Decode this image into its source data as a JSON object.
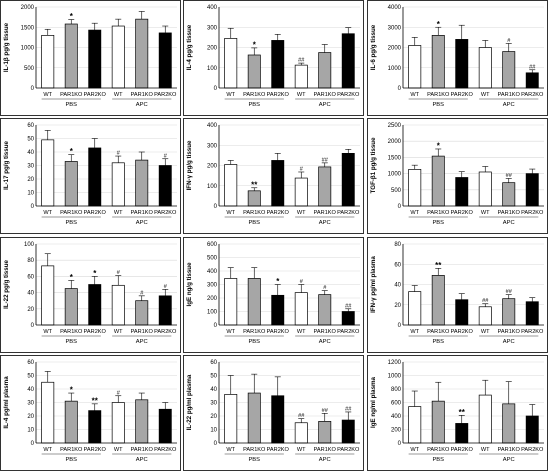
{
  "style": {
    "wt_color": "#ffffff",
    "par1_color": "#a6a6a6",
    "par2_color": "#000000",
    "edge": "#000000",
    "grid": "#d9d9d9"
  },
  "chart_data": [
    {
      "type": "bar",
      "ylabel": "IL-1β pg/g tissue",
      "ylim": [
        0,
        2000
      ],
      "yticks": [
        0,
        500,
        1000,
        1500,
        2000
      ],
      "categories": [
        "WT",
        "PAR1KO",
        "PAR2KO",
        "WT",
        "PAR1KO",
        "PAR2KO"
      ],
      "groups": [
        "PBS",
        "APC"
      ],
      "values": [
        1300,
        1580,
        1430,
        1530,
        1700,
        1360
      ],
      "errors": [
        150,
        110,
        170,
        170,
        190,
        170
      ],
      "annotations": [
        "",
        "*",
        "",
        "",
        "",
        ""
      ]
    },
    {
      "type": "bar",
      "ylabel": "IL-4 pg/g tissue",
      "ylim": [
        0,
        400
      ],
      "yticks": [
        0,
        100,
        200,
        300,
        400
      ],
      "categories": [
        "WT",
        "PAR1KO",
        "PAR2KO",
        "WT",
        "PAR1KO",
        "PAR2KO"
      ],
      "groups": [
        "PBS",
        "APC"
      ],
      "values": [
        245,
        163,
        235,
        113,
        175,
        268
      ],
      "errors": [
        50,
        35,
        30,
        10,
        40,
        30
      ],
      "annotations": [
        "",
        "*",
        "",
        "##",
        "",
        ""
      ]
    },
    {
      "type": "bar",
      "ylabel": "IL-6 pg/g tissue",
      "ylim": [
        0,
        4000
      ],
      "yticks": [
        0,
        1000,
        2000,
        3000,
        4000
      ],
      "categories": [
        "WT",
        "PAR1KO",
        "PAR2KO",
        "WT",
        "PAR1KO",
        "PAR2KO"
      ],
      "groups": [
        "PBS",
        "APC"
      ],
      "values": [
        2100,
        2600,
        2400,
        2000,
        1800,
        750
      ],
      "errors": [
        400,
        400,
        700,
        350,
        400,
        150
      ],
      "annotations": [
        "",
        "*",
        "",
        "",
        "#",
        "##"
      ]
    },
    {
      "type": "bar",
      "ylabel": "IL-17 pg/g tissue",
      "ylim": [
        0,
        60
      ],
      "yticks": [
        0,
        10,
        20,
        30,
        40,
        50,
        60
      ],
      "categories": [
        "WT",
        "PAR1KO",
        "PAR2KO",
        "WT",
        "PAR1KO",
        "PAR2KO"
      ],
      "groups": [
        "PBS",
        "APC"
      ],
      "values": [
        49,
        33,
        43,
        32,
        34,
        30
      ],
      "errors": [
        7,
        5,
        7,
        5,
        6,
        5
      ],
      "annotations": [
        "",
        "*",
        "",
        "#",
        "",
        "#"
      ]
    },
    {
      "type": "bar",
      "ylabel": "IFN-γ pg/g tissue",
      "ylim": [
        0,
        400
      ],
      "yticks": [
        0,
        100,
        200,
        300,
        400
      ],
      "categories": [
        "WT",
        "PAR1KO",
        "PAR2KO",
        "WT",
        "PAR1KO",
        "PAR2KO"
      ],
      "groups": [
        "PBS",
        "APC"
      ],
      "values": [
        205,
        75,
        225,
        138,
        193,
        260
      ],
      "errors": [
        20,
        15,
        35,
        30,
        20,
        20
      ],
      "annotations": [
        "",
        "**",
        "",
        "#",
        "##",
        ""
      ]
    },
    {
      "type": "bar",
      "ylabel": "TGF-β1 pg/g tissue",
      "ylim": [
        0,
        2500
      ],
      "yticks": [
        0,
        500,
        1000,
        1500,
        2000,
        2500
      ],
      "categories": [
        "WT",
        "PAR1KO",
        "PAR2KO",
        "WT",
        "PAR1KO",
        "PAR2KO"
      ],
      "groups": [
        "PBS",
        "APC"
      ],
      "values": [
        1130,
        1540,
        880,
        1050,
        720,
        1000
      ],
      "errors": [
        130,
        220,
        180,
        170,
        130,
        140
      ],
      "annotations": [
        "",
        "*",
        "",
        "",
        "##",
        ""
      ]
    },
    {
      "type": "bar",
      "ylabel": "IL-22 pg/g tissue",
      "ylim": [
        0,
        100
      ],
      "yticks": [
        0,
        20,
        40,
        60,
        80,
        100
      ],
      "categories": [
        "WT",
        "PAR1KO",
        "PAR2KO",
        "WT",
        "PAR1KO",
        "PAR2KO"
      ],
      "groups": [
        "PBS",
        "APC"
      ],
      "values": [
        73,
        45,
        50,
        49,
        30,
        36
      ],
      "errors": [
        15,
        10,
        10,
        12,
        6,
        8
      ],
      "annotations": [
        "",
        "*",
        "*",
        "#",
        "#",
        "#"
      ]
    },
    {
      "type": "bar",
      "ylabel": "IgE ng/g tissue",
      "ylim": [
        0,
        600
      ],
      "yticks": [
        0,
        100,
        200,
        300,
        400,
        500,
        600
      ],
      "categories": [
        "WT",
        "PAR1KO",
        "PAR2KO",
        "WT",
        "PAR1KO",
        "PAR2KO"
      ],
      "groups": [
        "PBS",
        "APC"
      ],
      "values": [
        345,
        345,
        220,
        240,
        225,
        100
      ],
      "errors": [
        80,
        80,
        80,
        60,
        30,
        20
      ],
      "annotations": [
        "",
        "",
        "*",
        "#",
        "#",
        "##"
      ]
    },
    {
      "type": "bar",
      "ylabel": "IFN-γ pg/ml plasma",
      "ylim": [
        0,
        80
      ],
      "yticks": [
        0,
        20,
        40,
        60,
        80
      ],
      "categories": [
        "WT",
        "PAR1KO",
        "PAR2KO",
        "WT",
        "PAR1KO",
        "PAR2KO"
      ],
      "groups": [
        "PBS",
        "APC"
      ],
      "values": [
        33,
        49,
        25,
        18,
        26,
        23
      ],
      "errors": [
        6,
        7,
        6,
        3,
        4,
        4
      ],
      "annotations": [
        "",
        "**",
        "",
        "##",
        "##",
        ""
      ]
    },
    {
      "type": "bar",
      "ylabel": "IL-4 pg/ml plasma",
      "ylim": [
        0,
        60
      ],
      "yticks": [
        0,
        10,
        20,
        30,
        40,
        50,
        60
      ],
      "categories": [
        "WT",
        "PAR1KO",
        "PAR2KO",
        "WT",
        "PAR1KO",
        "PAR2KO"
      ],
      "groups": [
        "PBS",
        "APC"
      ],
      "values": [
        45,
        31,
        24,
        30,
        32,
        25
      ],
      "errors": [
        8,
        6,
        5,
        5,
        5,
        5
      ],
      "annotations": [
        "",
        "*",
        "**",
        "#",
        "",
        ""
      ]
    },
    {
      "type": "bar",
      "ylabel": "IL-22 pg/ml plasma",
      "ylim": [
        0,
        60
      ],
      "yticks": [
        0,
        10,
        20,
        30,
        40,
        50,
        60
      ],
      "categories": [
        "WT",
        "PAR1KO",
        "PAR2KO",
        "WT",
        "PAR1KO",
        "PAR2KO"
      ],
      "groups": [
        "PBS",
        "APC"
      ],
      "values": [
        36,
        37,
        35,
        15,
        16,
        17
      ],
      "errors": [
        14,
        14,
        14,
        3,
        6,
        6
      ],
      "annotations": [
        "",
        "",
        "",
        "##",
        "##",
        "##"
      ]
    },
    {
      "type": "bar",
      "ylabel": "IgE ng/ml plasma",
      "ylim": [
        0,
        1200
      ],
      "yticks": [
        0,
        200,
        400,
        600,
        800,
        1000,
        1200
      ],
      "categories": [
        "WT",
        "PAR1KO",
        "PAR2KO",
        "WT",
        "PAR1KO",
        "PAR2KO"
      ],
      "groups": [
        "PBS",
        "APC"
      ],
      "values": [
        540,
        620,
        290,
        710,
        580,
        400
      ],
      "errors": [
        230,
        280,
        120,
        220,
        330,
        170
      ],
      "annotations": [
        "",
        "",
        "**",
        "",
        "",
        ""
      ]
    }
  ]
}
